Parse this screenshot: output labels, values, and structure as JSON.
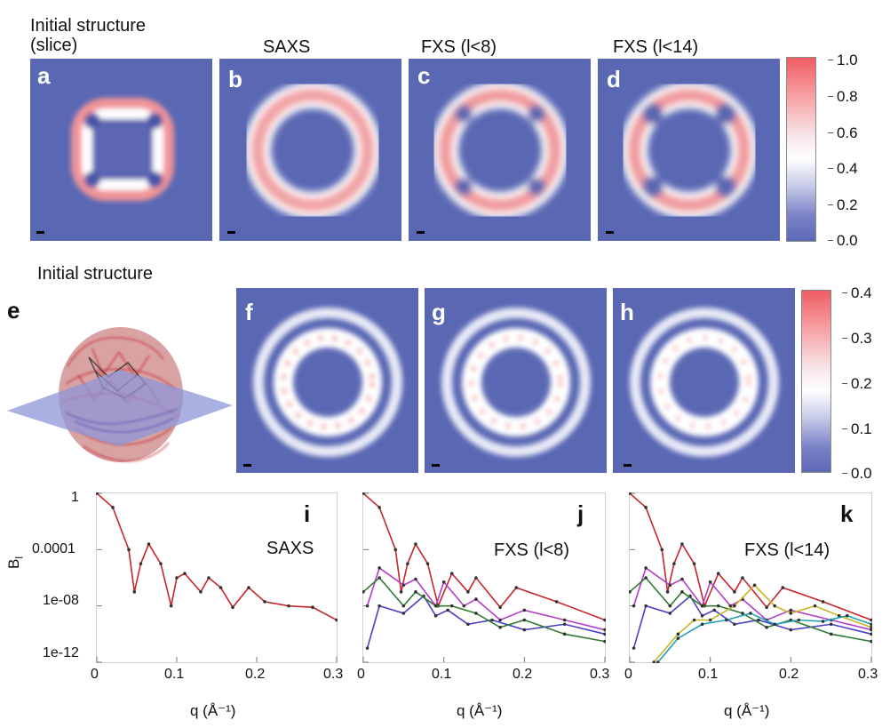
{
  "row1": {
    "headers": [
      "Initial structure\n(slice)",
      "SAXS",
      "FXS (l<8)",
      "FXS (l<14)"
    ],
    "panel_labels": [
      "a",
      "b",
      "c",
      "d"
    ],
    "colorbar_ticks": [
      "1.0",
      "0.8",
      "0.6",
      "0.4",
      "0.2",
      "0.0"
    ]
  },
  "row2": {
    "header": "Initial structure",
    "panel_labels": [
      "e",
      "f",
      "g",
      "h"
    ],
    "colorbar_ticks": [
      "0.4",
      "0.3",
      "0.2",
      "0.1",
      "0.0"
    ]
  },
  "row3": {
    "ylabel": "B",
    "ylabel_sub": "l",
    "xlabel": "q (Å⁻¹)",
    "panel_labels": [
      "i",
      "j",
      "k"
    ],
    "titles": [
      "SAXS",
      "FXS (l<8)",
      "FXS (l<14)"
    ],
    "xticks": [
      "0",
      "0.1",
      "0.2",
      "0.3"
    ],
    "yticks": [
      "1",
      "0.0001",
      "1e-08",
      "1e-12"
    ]
  },
  "colors": {
    "panel_bg": "#5a68b4",
    "red": "#c8262b",
    "purple": "#b43cc8",
    "blue": "#4a40c8",
    "green": "#2f7a2f",
    "yellow": "#c8b420",
    "cyan": "#20a0b8"
  },
  "chart_data": [
    {
      "type": "line",
      "ylog": true,
      "xlim": [
        0,
        0.3
      ],
      "ylim": [
        1e-12,
        1
      ],
      "series": [
        {
          "values": [
            [
              0,
              1
            ],
            [
              0.02,
              0.1
            ],
            [
              0.04,
              0.0001
            ],
            [
              0.047,
              1e-07
            ],
            [
              0.055,
              1e-05
            ],
            [
              0.065,
              0.00025
            ],
            [
              0.08,
              1e-05
            ],
            [
              0.093,
              1e-08
            ],
            [
              0.1,
              1e-06
            ],
            [
              0.11,
              2e-06
            ],
            [
              0.13,
              1e-07
            ],
            [
              0.14,
              1e-06
            ],
            [
              0.155,
              2e-07
            ],
            [
              0.17,
              8e-09
            ],
            [
              0.19,
              2e-07
            ],
            [
              0.21,
              2e-08
            ],
            [
              0.24,
              1e-08
            ],
            [
              0.27,
              8e-09
            ],
            [
              0.3,
              1e-09
            ]
          ]
        }
      ]
    },
    {
      "type": "line",
      "ylog": true,
      "xlim": [
        0,
        0.3
      ],
      "ylim": [
        1e-12,
        1
      ],
      "series": [
        {
          "values": [
            [
              0,
              1
            ],
            [
              0.02,
              0.1
            ],
            [
              0.04,
              0.0001
            ],
            [
              0.047,
              1e-07
            ],
            [
              0.055,
              1e-05
            ],
            [
              0.065,
              0.00025
            ],
            [
              0.08,
              1e-05
            ],
            [
              0.093,
              1e-08
            ],
            [
              0.11,
              2e-06
            ],
            [
              0.13,
              1e-07
            ],
            [
              0.14,
              1e-06
            ],
            [
              0.17,
              8e-09
            ],
            [
              0.19,
              2e-07
            ],
            [
              0.24,
              2e-08
            ],
            [
              0.3,
              1e-09
            ]
          ]
        },
        {
          "values": [
            [
              0.005,
              1e-08
            ],
            [
              0.02,
              5e-06
            ],
            [
              0.05,
              3e-07
            ],
            [
              0.065,
              8e-07
            ],
            [
              0.09,
              1e-08
            ],
            [
              0.1,
              5e-07
            ],
            [
              0.125,
              1e-08
            ],
            [
              0.14,
              3e-08
            ],
            [
              0.17,
              1e-09
            ],
            [
              0.2,
              5e-09
            ],
            [
              0.25,
              1e-09
            ],
            [
              0.3,
              2e-10
            ]
          ]
        },
        {
          "values": [
            [
              0.005,
              1e-11
            ],
            [
              0.02,
              1e-08
            ],
            [
              0.05,
              3e-09
            ],
            [
              0.075,
              5e-08
            ],
            [
              0.09,
              2e-09
            ],
            [
              0.105,
              5e-09
            ],
            [
              0.13,
              5e-10
            ],
            [
              0.16,
              1e-09
            ],
            [
              0.2,
              2e-10
            ],
            [
              0.25,
              5e-10
            ],
            [
              0.3,
              1e-10
            ]
          ]
        },
        {
          "values": [
            [
              0,
              1e-07
            ],
            [
              0.02,
              1e-06
            ],
            [
              0.05,
              1e-08
            ],
            [
              0.065,
              1e-07
            ],
            [
              0.09,
              1e-08
            ],
            [
              0.11,
              1e-08
            ],
            [
              0.14,
              3e-09
            ],
            [
              0.17,
              3e-10
            ],
            [
              0.2,
              1e-09
            ],
            [
              0.25,
              1e-10
            ],
            [
              0.3,
              3e-11
            ]
          ]
        }
      ]
    },
    {
      "type": "line",
      "ylog": true,
      "xlim": [
        0,
        0.3
      ],
      "ylim": [
        1e-12,
        1
      ],
      "series": [
        {
          "values": [
            [
              0,
              1
            ],
            [
              0.02,
              0.1
            ],
            [
              0.04,
              0.0001
            ],
            [
              0.047,
              1e-07
            ],
            [
              0.055,
              1e-05
            ],
            [
              0.065,
              0.00025
            ],
            [
              0.08,
              1e-05
            ],
            [
              0.093,
              1e-08
            ],
            [
              0.11,
              2e-06
            ],
            [
              0.13,
              1e-07
            ],
            [
              0.14,
              1e-06
            ],
            [
              0.17,
              8e-09
            ],
            [
              0.19,
              2e-07
            ],
            [
              0.24,
              2e-08
            ],
            [
              0.3,
              1e-09
            ]
          ]
        },
        {
          "values": [
            [
              0.005,
              1e-08
            ],
            [
              0.02,
              5e-06
            ],
            [
              0.05,
              3e-07
            ],
            [
              0.065,
              8e-07
            ],
            [
              0.09,
              1e-08
            ],
            [
              0.1,
              5e-07
            ],
            [
              0.125,
              1e-08
            ],
            [
              0.14,
              3e-08
            ],
            [
              0.17,
              1e-09
            ],
            [
              0.2,
              5e-09
            ],
            [
              0.25,
              1e-09
            ],
            [
              0.3,
              2e-10
            ]
          ]
        },
        {
          "values": [
            [
              0.005,
              1e-11
            ],
            [
              0.02,
              1e-08
            ],
            [
              0.05,
              3e-09
            ],
            [
              0.075,
              5e-08
            ],
            [
              0.09,
              2e-09
            ],
            [
              0.105,
              5e-09
            ],
            [
              0.13,
              5e-10
            ],
            [
              0.16,
              1e-09
            ],
            [
              0.2,
              2e-10
            ],
            [
              0.25,
              5e-10
            ],
            [
              0.3,
              1e-10
            ]
          ]
        },
        {
          "values": [
            [
              0,
              1e-07
            ],
            [
              0.02,
              1e-06
            ],
            [
              0.05,
              1e-08
            ],
            [
              0.065,
              1e-07
            ],
            [
              0.09,
              1e-08
            ],
            [
              0.11,
              1e-08
            ],
            [
              0.14,
              3e-09
            ],
            [
              0.17,
              3e-10
            ],
            [
              0.2,
              1e-09
            ],
            [
              0.25,
              1e-10
            ],
            [
              0.3,
              3e-11
            ]
          ]
        },
        {
          "values": [
            [
              0.03,
              1e-12
            ],
            [
              0.06,
              1e-10
            ],
            [
              0.08,
              1e-09
            ],
            [
              0.1,
              1e-09
            ],
            [
              0.13,
              1e-08
            ],
            [
              0.155,
              3e-07
            ],
            [
              0.18,
              1e-08
            ],
            [
              0.2,
              3e-09
            ],
            [
              0.23,
              1e-08
            ],
            [
              0.26,
              2e-09
            ],
            [
              0.3,
              3e-10
            ]
          ]
        },
        {
          "values": [
            [
              0.035,
              1e-12
            ],
            [
              0.06,
              5e-11
            ],
            [
              0.09,
              5e-10
            ],
            [
              0.12,
              1e-09
            ],
            [
              0.15,
              3e-09
            ],
            [
              0.18,
              5e-10
            ],
            [
              0.21,
              1e-09
            ],
            [
              0.24,
              8e-10
            ],
            [
              0.27,
              2e-09
            ],
            [
              0.3,
              5e-10
            ]
          ]
        }
      ]
    }
  ]
}
